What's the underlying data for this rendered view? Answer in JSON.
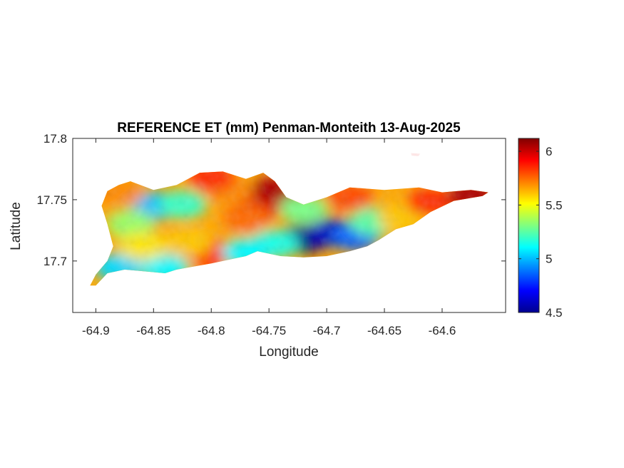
{
  "chart_data": {
    "type": "heatmap",
    "title": "REFERENCE ET (mm) Penman-Monteith 13-Aug-2025",
    "xlabel": "Longitude",
    "ylabel": "Latitude",
    "xlim": [
      -64.92,
      -64.545
    ],
    "ylim": [
      17.658,
      17.8
    ],
    "x_ticks": [
      -64.9,
      -64.85,
      -64.8,
      -64.75,
      -64.7,
      -64.65,
      -64.6
    ],
    "x_tick_labels": [
      "-64.9",
      "-64.85",
      "-64.8",
      "-64.75",
      "-64.7",
      "-64.65",
      "-64.6"
    ],
    "y_ticks": [
      17.7,
      17.75,
      17.8
    ],
    "y_tick_labels": [
      "17.7",
      "17.75",
      "17.8"
    ],
    "colorbar": {
      "colormap": "jet",
      "limits": [
        4.5,
        6.12
      ],
      "ticks": [
        4.5,
        5,
        5.5,
        6
      ],
      "tick_labels": [
        "4.5",
        "5",
        "5.5",
        "6"
      ]
    },
    "grid": false,
    "island_outline": [
      [
        -64.9,
        17.68
      ],
      [
        -64.89,
        17.69
      ],
      [
        -64.875,
        17.693
      ],
      [
        -64.84,
        17.69
      ],
      [
        -64.83,
        17.693
      ],
      [
        -64.8,
        17.698
      ],
      [
        -64.785,
        17.701
      ],
      [
        -64.77,
        17.704
      ],
      [
        -64.76,
        17.708
      ],
      [
        -64.74,
        17.704
      ],
      [
        -64.72,
        17.703
      ],
      [
        -64.7,
        17.704
      ],
      [
        -64.68,
        17.708
      ],
      [
        -64.665,
        17.712
      ],
      [
        -64.655,
        17.717
      ],
      [
        -64.64,
        17.726
      ],
      [
        -64.625,
        17.73
      ],
      [
        -64.61,
        17.74
      ],
      [
        -64.59,
        17.749
      ],
      [
        -64.565,
        17.753
      ],
      [
        -64.56,
        17.756
      ],
      [
        -64.575,
        17.758
      ],
      [
        -64.6,
        17.756
      ],
      [
        -64.62,
        17.76
      ],
      [
        -64.65,
        17.758
      ],
      [
        -64.68,
        17.76
      ],
      [
        -64.7,
        17.752
      ],
      [
        -64.72,
        17.746
      ],
      [
        -64.735,
        17.752
      ],
      [
        -64.745,
        17.765
      ],
      [
        -64.755,
        17.772
      ],
      [
        -64.77,
        17.767
      ],
      [
        -64.79,
        17.773
      ],
      [
        -64.81,
        17.772
      ],
      [
        -64.83,
        17.762
      ],
      [
        -64.85,
        17.758
      ],
      [
        -64.87,
        17.765
      ],
      [
        -64.88,
        17.762
      ],
      [
        -64.89,
        17.757
      ],
      [
        -64.895,
        17.745
      ],
      [
        -64.89,
        17.73
      ],
      [
        -64.885,
        17.712
      ],
      [
        -64.89,
        17.7
      ],
      [
        -64.9,
        17.689
      ],
      [
        -64.905,
        17.68
      ]
    ],
    "islet_outline": [
      [
        -64.627,
        17.788
      ],
      [
        -64.619,
        17.7875
      ],
      [
        -64.6205,
        17.7855
      ],
      [
        -64.6265,
        17.786
      ]
    ],
    "value_field_centers": [
      {
        "lon": -64.72,
        "lat": 17.718,
        "value": 4.5
      },
      {
        "lon": -64.695,
        "lat": 17.723,
        "value": 4.6
      },
      {
        "lon": -64.675,
        "lat": 17.72,
        "value": 4.85
      },
      {
        "lon": -64.745,
        "lat": 17.714,
        "value": 5.15
      },
      {
        "lon": -64.66,
        "lat": 17.732,
        "value": 5.25
      },
      {
        "lon": -64.635,
        "lat": 17.735,
        "value": 5.6
      },
      {
        "lon": -64.61,
        "lat": 17.748,
        "value": 5.85
      },
      {
        "lon": -64.575,
        "lat": 17.754,
        "value": 6.05
      },
      {
        "lon": -64.85,
        "lat": 17.745,
        "value": 5.0
      },
      {
        "lon": -64.825,
        "lat": 17.746,
        "value": 5.2
      },
      {
        "lon": -64.87,
        "lat": 17.73,
        "value": 5.35
      },
      {
        "lon": -64.88,
        "lat": 17.695,
        "value": 5.05
      },
      {
        "lon": -64.84,
        "lat": 17.694,
        "value": 5.1
      },
      {
        "lon": -64.755,
        "lat": 17.745,
        "value": 5.95
      },
      {
        "lon": -64.745,
        "lat": 17.758,
        "value": 6.05
      },
      {
        "lon": -64.8,
        "lat": 17.706,
        "value": 5.9
      },
      {
        "lon": -64.77,
        "lat": 17.735,
        "value": 5.75
      },
      {
        "lon": -64.785,
        "lat": 17.758,
        "value": 5.7
      },
      {
        "lon": -64.82,
        "lat": 17.715,
        "value": 5.6
      },
      {
        "lon": -64.86,
        "lat": 17.712,
        "value": 5.55
      },
      {
        "lon": -64.77,
        "lat": 17.707,
        "value": 5.1
      },
      {
        "lon": -64.68,
        "lat": 17.752,
        "value": 5.8
      },
      {
        "lon": -64.72,
        "lat": 17.742,
        "value": 5.3
      },
      {
        "lon": -64.88,
        "lat": 17.755,
        "value": 5.7
      },
      {
        "lon": -64.8,
        "lat": 17.768,
        "value": 5.85
      }
    ]
  }
}
